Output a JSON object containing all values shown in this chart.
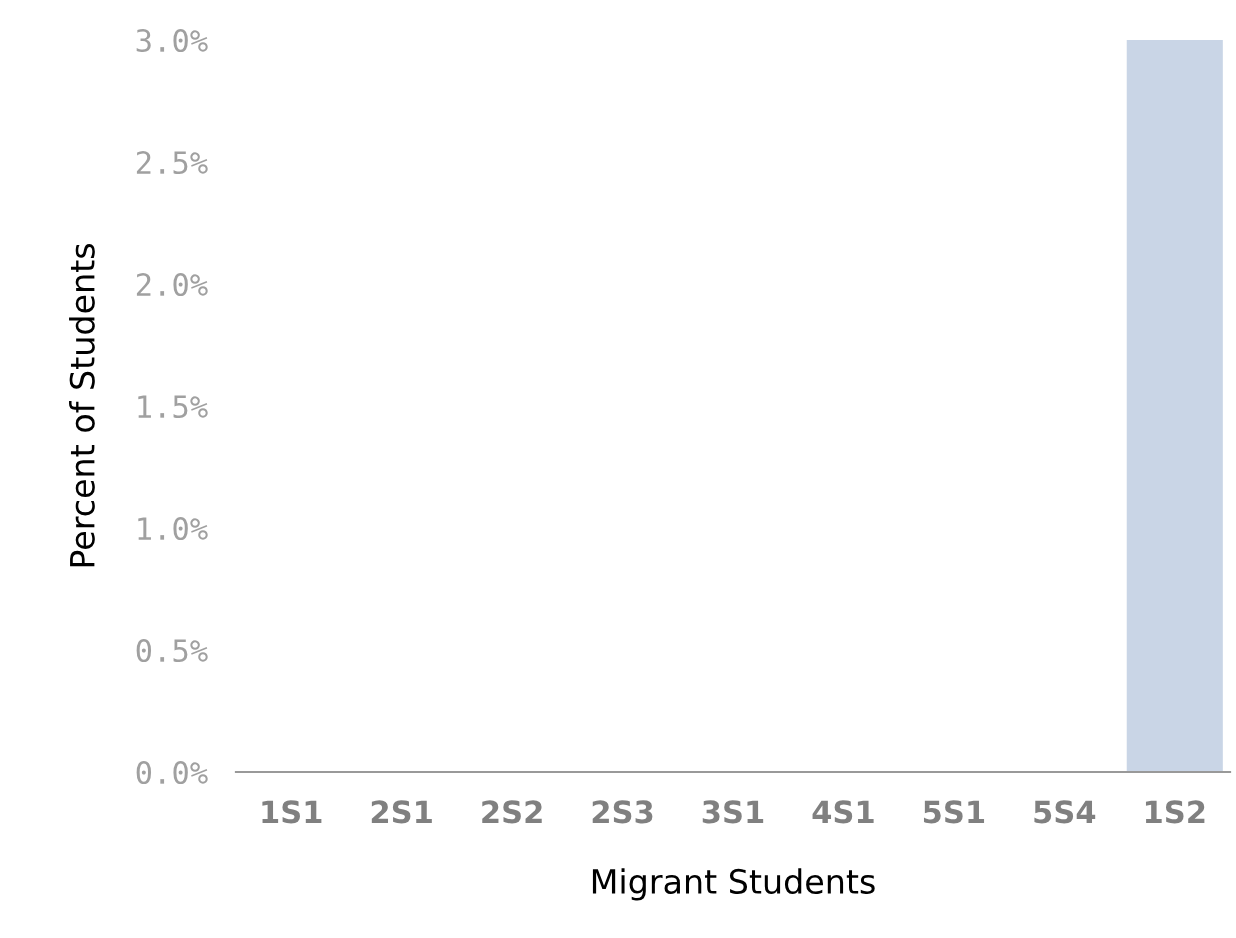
{
  "chart_data": {
    "type": "bar",
    "xlabel": "Migrant Students",
    "ylabel": "Percent of Students",
    "categories": [
      "1S1",
      "2S1",
      "2S2",
      "2S3",
      "3S1",
      "4S1",
      "5S1",
      "5S4",
      "1S2"
    ],
    "values": [
      0,
      0,
      0,
      0,
      0,
      0,
      0,
      0,
      3.0
    ],
    "color": "#c9d5e6",
    "ylim": [
      0,
      3
    ],
    "yticks": [
      {
        "value": 0,
        "label": "0.0%"
      },
      {
        "value": 0.5,
        "label": "0.5%"
      },
      {
        "value": 1,
        "label": "1.0%"
      },
      {
        "value": 1.5,
        "label": "1.5%"
      },
      {
        "value": 2,
        "label": "2.0%"
      },
      {
        "value": 2.5,
        "label": "2.5%"
      },
      {
        "value": 3,
        "label": "3.0%"
      }
    ],
    "grid": false,
    "legend": false
  }
}
